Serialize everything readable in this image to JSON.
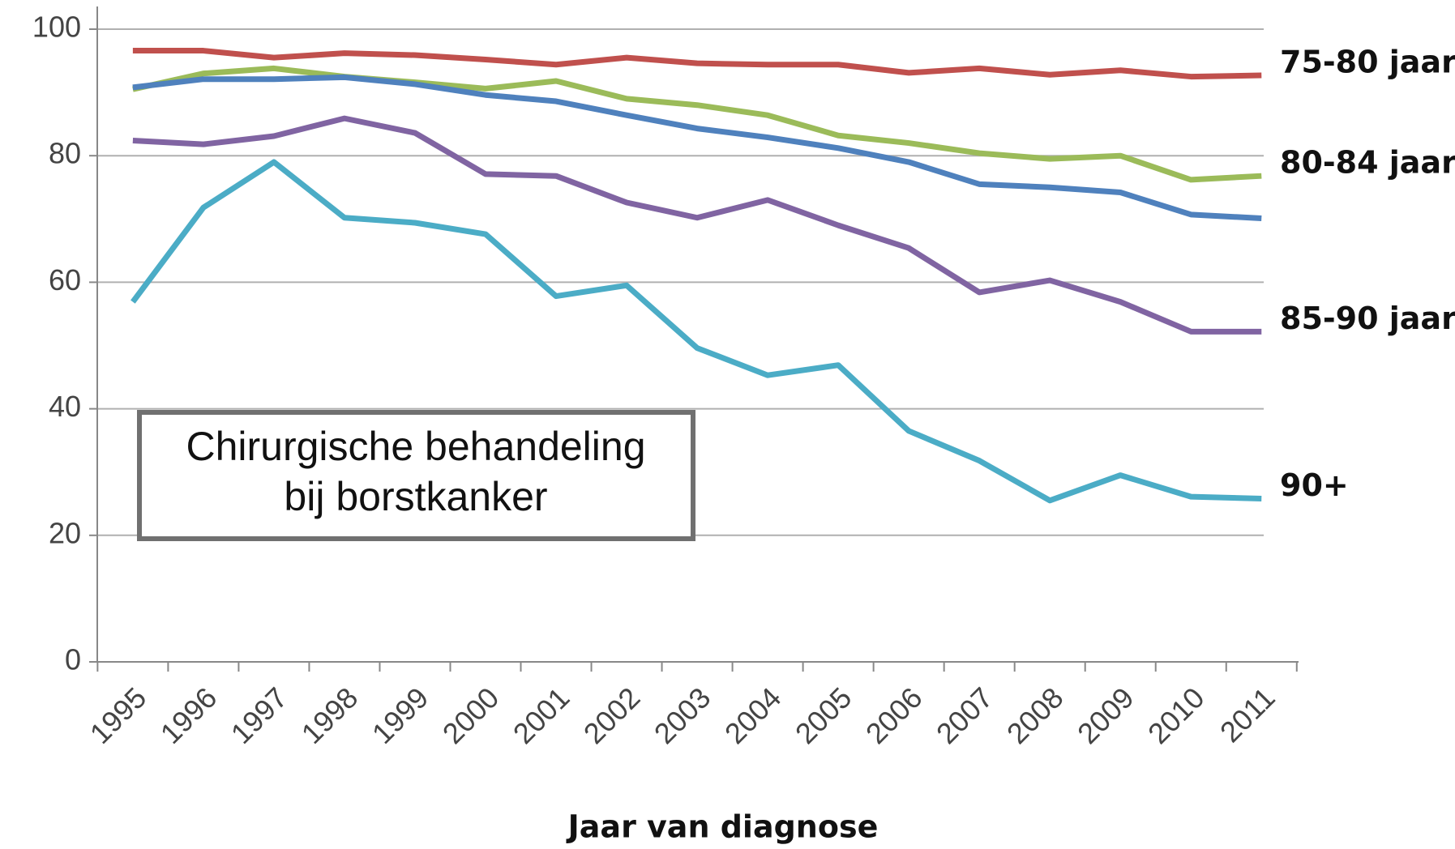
{
  "chart_data": {
    "type": "line",
    "x_label": "Jaar van diagnose",
    "annotation": [
      "Chirurgische behandeling",
      "bij borstkanker"
    ],
    "categories": [
      "1995",
      "1996",
      "1997",
      "1998",
      "1999",
      "2000",
      "2001",
      "2002",
      "2003",
      "2004",
      "2005",
      "2006",
      "2007",
      "2008",
      "2009",
      "2010",
      "2011"
    ],
    "ylim": [
      0,
      100
    ],
    "yticks": [
      0,
      20,
      40,
      60,
      80,
      100
    ],
    "grid": true,
    "series": [
      {
        "name": "75-80 jaar",
        "color": "#c0504d",
        "values": [
          96.6,
          96.6,
          95.5,
          96.2,
          95.9,
          95.2,
          94.4,
          95.5,
          94.6,
          94.4,
          94.4,
          93.1,
          93.8,
          92.8,
          93.5,
          92.5,
          92.7
        ]
      },
      {
        "name": "80-84 jaar",
        "color": "#9bbb59",
        "values": [
          90.5,
          93,
          93.8,
          92.5,
          91.6,
          90.6,
          91.8,
          89,
          88,
          86.4,
          83.2,
          82,
          80.4,
          79.5,
          80,
          76.2,
          76.8
        ]
      },
      {
        "color": "#4f81bd",
        "values": [
          90.8,
          92.1,
          92.1,
          92.4,
          91.3,
          89.6,
          88.6,
          86.4,
          84.3,
          82.9,
          81.2,
          79,
          75.5,
          75,
          74.2,
          70.7,
          70.1
        ]
      },
      {
        "name": "85-90 jaar",
        "color": "#8064a2",
        "values": [
          82.4,
          81.8,
          83.1,
          85.9,
          83.6,
          77.1,
          76.8,
          72.6,
          70.2,
          73,
          69,
          65.4,
          58.4,
          60.3,
          56.9,
          52.2,
          52.2
        ]
      },
      {
        "name": "90+",
        "color": "#4bacc6",
        "values": [
          56.9,
          71.8,
          79,
          70.2,
          69.4,
          67.6,
          57.8,
          59.5,
          49.6,
          45.3,
          46.9,
          36.5,
          31.8,
          25.5,
          29.5,
          26.1,
          25.8
        ]
      }
    ]
  }
}
